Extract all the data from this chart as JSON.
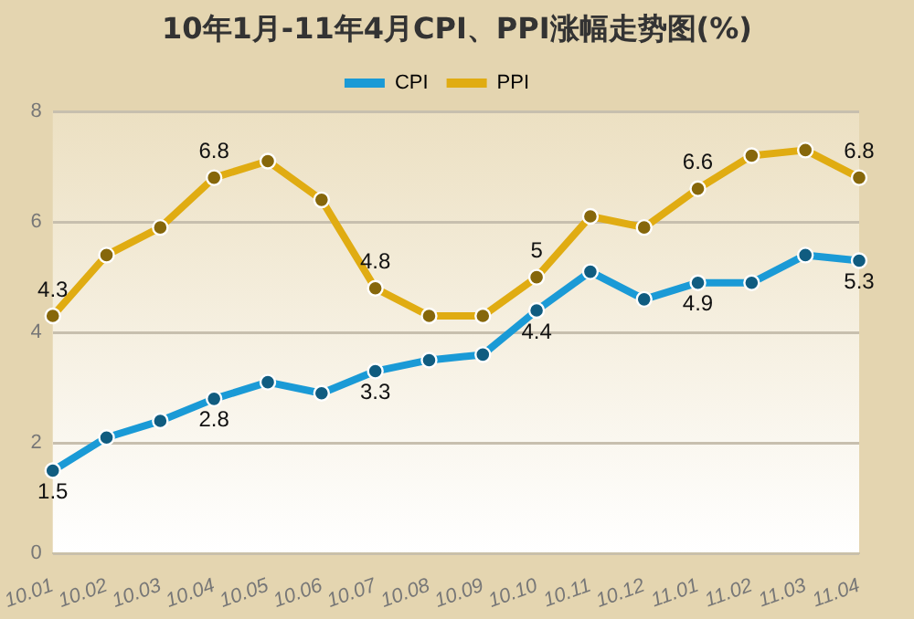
{
  "chart_data": {
    "type": "line",
    "title": "10年1月-11年4月CPI、PPI涨幅走势图(%)",
    "categories": [
      "10.01",
      "10.02",
      "10.03",
      "10.04",
      "10.05",
      "10.06",
      "10.07",
      "10.08",
      "10.09",
      "10.10",
      "10.11",
      "10.12",
      "11.01",
      "11.02",
      "11.03",
      "11.04"
    ],
    "series": [
      {
        "name": "CPI",
        "color": "#1a9ad6",
        "values": [
          1.5,
          2.1,
          2.4,
          2.8,
          3.1,
          2.9,
          3.3,
          3.5,
          3.6,
          4.4,
          5.1,
          4.6,
          4.9,
          4.9,
          5.4,
          5.3
        ],
        "value_labels": [
          "1.5",
          null,
          null,
          "2.8",
          null,
          null,
          "3.3",
          null,
          null,
          "4.4",
          null,
          null,
          "4.9",
          null,
          null,
          "5.3"
        ]
      },
      {
        "name": "PPI",
        "color": "#e0ac12",
        "values": [
          4.3,
          5.4,
          5.9,
          6.8,
          7.1,
          6.4,
          4.8,
          4.3,
          4.3,
          5.0,
          6.1,
          5.9,
          6.6,
          7.2,
          7.3,
          6.8
        ],
        "value_labels": [
          "4.3",
          null,
          null,
          "6.8",
          null,
          null,
          "4.8",
          null,
          null,
          "5",
          null,
          null,
          "6.6",
          null,
          null,
          "6.8"
        ]
      }
    ],
    "ylim": [
      0,
      8
    ],
    "yticks": [
      0,
      2,
      4,
      6,
      8
    ],
    "grid": "y",
    "legend": "top",
    "marker": "circle",
    "line_style": "solid"
  }
}
